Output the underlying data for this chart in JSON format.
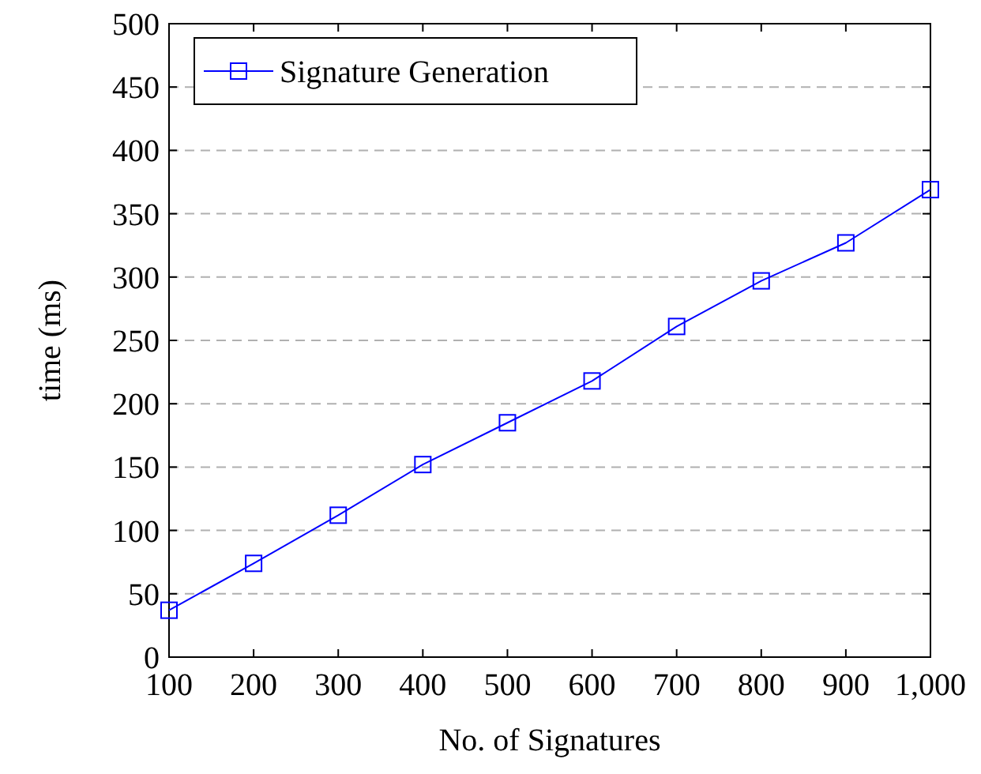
{
  "chart_data": {
    "type": "line",
    "xlabel": "No. of Signatures",
    "ylabel": "time (ms)",
    "x": [
      100,
      200,
      300,
      400,
      500,
      600,
      700,
      800,
      900,
      1000
    ],
    "series": [
      {
        "name": "Signature Generation",
        "color": "#0000ff",
        "values": [
          37,
          74,
          112,
          152,
          185,
          218,
          261,
          297,
          327,
          369
        ]
      }
    ],
    "xlim": [
      100,
      1000
    ],
    "xticks": [
      100,
      200,
      300,
      400,
      500,
      600,
      700,
      800,
      900,
      {
        "value": 1000,
        "label": "1,000"
      }
    ],
    "ylim": [
      0,
      500
    ],
    "yticks": [
      0,
      50,
      100,
      150,
      200,
      250,
      300,
      350,
      400,
      450,
      500
    ],
    "grid": "y",
    "legend": "top left",
    "marker": "square",
    "line_style": "solid"
  }
}
